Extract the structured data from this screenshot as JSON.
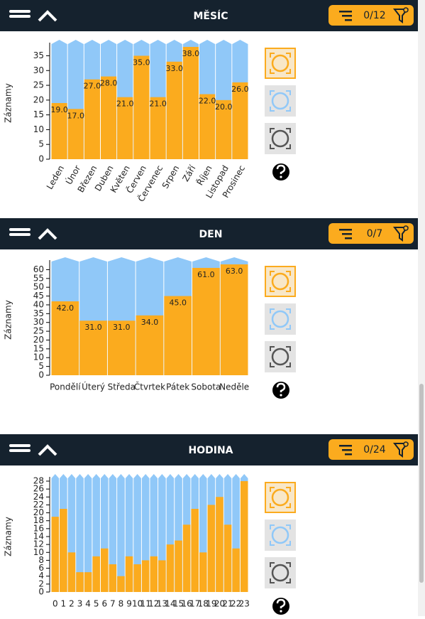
{
  "panels": [
    {
      "title": "MĚSÍC",
      "filter": "0/12"
    },
    {
      "title": "DEN",
      "filter": "0/7"
    },
    {
      "title": "HODINA",
      "filter": "0/24"
    }
  ],
  "chart_data": [
    {
      "type": "bar",
      "y_label": "Záznamy",
      "color": "#fbab1e",
      "categories": [
        "Leden",
        "Únor",
        "Březen",
        "Duben",
        "Květen",
        "Červen",
        "Červenec",
        "Srpen",
        "Září",
        "Říjen",
        "Listopad",
        "Prosinec"
      ],
      "values": [
        19,
        17,
        27,
        28,
        21,
        35,
        21,
        33,
        38,
        22,
        20,
        26
      ],
      "value_labels": [
        "19.0",
        "17.0",
        "27.0",
        "28.0",
        "21.0",
        "35.0",
        "21.0",
        "33.0",
        "38.0",
        "22.0",
        "20.0",
        "26.0"
      ],
      "ylim": [
        0,
        38
      ],
      "yticks": [
        0,
        5,
        10,
        15,
        20,
        25,
        30,
        35
      ]
    },
    {
      "type": "bar",
      "y_label": "Záznamy",
      "color": "#fbab1e",
      "categories": [
        "Pondělí",
        "Úterý",
        "Středa",
        "Čtvrtek",
        "Pátek",
        "Sobota",
        "Neděle"
      ],
      "values": [
        42,
        31,
        31,
        34,
        45,
        61,
        63
      ],
      "value_labels": [
        "42.0",
        "31.0",
        "31.0",
        "34.0",
        "45.0",
        "61.0",
        "63.0"
      ],
      "ylim": [
        0,
        63
      ],
      "yticks": [
        0,
        5,
        10,
        15,
        20,
        25,
        30,
        35,
        40,
        45,
        50,
        55,
        60
      ]
    },
    {
      "type": "bar",
      "y_label": "Záznamy",
      "color": "#fbab1e",
      "categories": [
        "0",
        "1",
        "2",
        "3",
        "4",
        "5",
        "6",
        "7",
        "8",
        "9",
        "10",
        "11",
        "12",
        "13",
        "14",
        "15",
        "16",
        "17",
        "18",
        "19",
        "20",
        "21",
        "22",
        "23"
      ],
      "values": [
        19,
        21,
        10,
        5,
        5,
        9,
        11,
        7,
        4,
        9,
        7,
        8,
        9,
        8,
        12,
        13,
        17,
        21,
        10,
        22,
        24,
        17,
        11,
        28
      ],
      "ylim": [
        0,
        28
      ],
      "yticks": [
        0,
        2,
        4,
        6,
        8,
        10,
        12,
        14,
        16,
        18,
        20,
        22,
        24,
        26,
        28
      ]
    }
  ]
}
